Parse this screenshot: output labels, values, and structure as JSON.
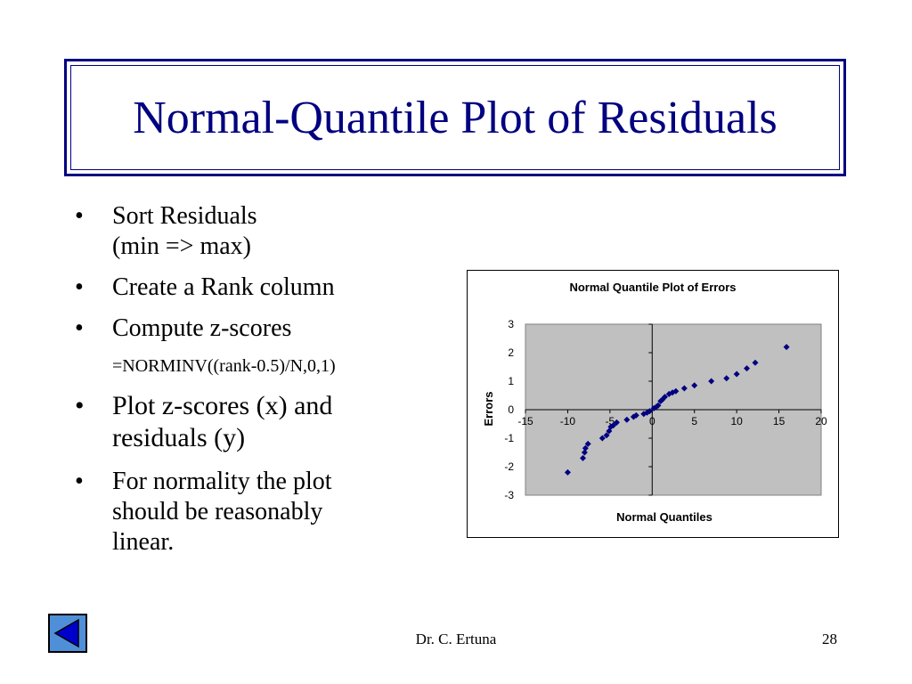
{
  "slide": {
    "title": "Normal-Quantile Plot of Residuals",
    "bullets": [
      {
        "marker": "•",
        "lines": [
          "Sort Residuals"
        ],
        "size": "fs28"
      },
      {
        "marker": "",
        "lines": [
          "(min => max)"
        ],
        "size": "fs28"
      },
      {
        "marker": "•",
        "lines": [
          "Create a Rank column"
        ],
        "size": "fs28"
      },
      {
        "marker": "•",
        "lines": [
          "Compute z-scores"
        ],
        "size": "fs28"
      },
      {
        "marker": "",
        "lines": [
          "=NORMINV((rank-0.5)/N,0,1)"
        ],
        "size": "fs20"
      },
      {
        "marker": "•",
        "lines": [
          "Plot z-scores (x) and",
          "residuals (y)"
        ],
        "size": "fs30"
      },
      {
        "marker": "•",
        "lines": [
          "For normality the plot",
          "should be reasonably",
          "linear."
        ],
        "size": "fs28"
      }
    ]
  },
  "footer": {
    "author": "Dr. C. Ertuna",
    "page": "28",
    "nav_icon": "back-arrow-icon"
  },
  "colors": {
    "title": "#000080",
    "plot_area": "#c0c0c0",
    "marker": "#000080",
    "nav_button": "#4f8fd8",
    "nav_arrow": "#0000cc"
  },
  "chart_data": {
    "type": "scatter",
    "title": "Normal Quantile Plot of Errors",
    "xlabel": "Normal Quantiles",
    "ylabel": "Errors",
    "xlim": [
      -15,
      20
    ],
    "ylim": [
      -3,
      3
    ],
    "xticks": [
      "-15",
      "-10",
      "-5",
      "0",
      "5",
      "10",
      "15",
      "20"
    ],
    "yticks": [
      "3",
      "2",
      "1",
      "0",
      "-1",
      "-2",
      "-3"
    ],
    "grid": false,
    "legend": "none",
    "points": [
      [
        -10.0,
        -2.2
      ],
      [
        -8.2,
        -1.7
      ],
      [
        -8.0,
        -1.5
      ],
      [
        -7.9,
        -1.35
      ],
      [
        -7.6,
        -1.2
      ],
      [
        -5.9,
        -1.0
      ],
      [
        -5.4,
        -0.9
      ],
      [
        -5.1,
        -0.75
      ],
      [
        -4.9,
        -0.6
      ],
      [
        -4.6,
        -0.55
      ],
      [
        -4.2,
        -0.45
      ],
      [
        -3.0,
        -0.35
      ],
      [
        -2.2,
        -0.25
      ],
      [
        -1.9,
        -0.2
      ],
      [
        -1.0,
        -0.15
      ],
      [
        -0.6,
        -0.1
      ],
      [
        -0.3,
        -0.05
      ],
      [
        0.2,
        0.05
      ],
      [
        0.5,
        0.1
      ],
      [
        0.7,
        0.15
      ],
      [
        1.0,
        0.3
      ],
      [
        1.2,
        0.35
      ],
      [
        1.5,
        0.45
      ],
      [
        2.0,
        0.55
      ],
      [
        2.4,
        0.6
      ],
      [
        2.8,
        0.65
      ],
      [
        3.8,
        0.75
      ],
      [
        5.0,
        0.85
      ],
      [
        7.0,
        1.0
      ],
      [
        8.8,
        1.1
      ],
      [
        10.0,
        1.25
      ],
      [
        11.2,
        1.45
      ],
      [
        12.2,
        1.65
      ],
      [
        15.9,
        2.2
      ]
    ]
  }
}
